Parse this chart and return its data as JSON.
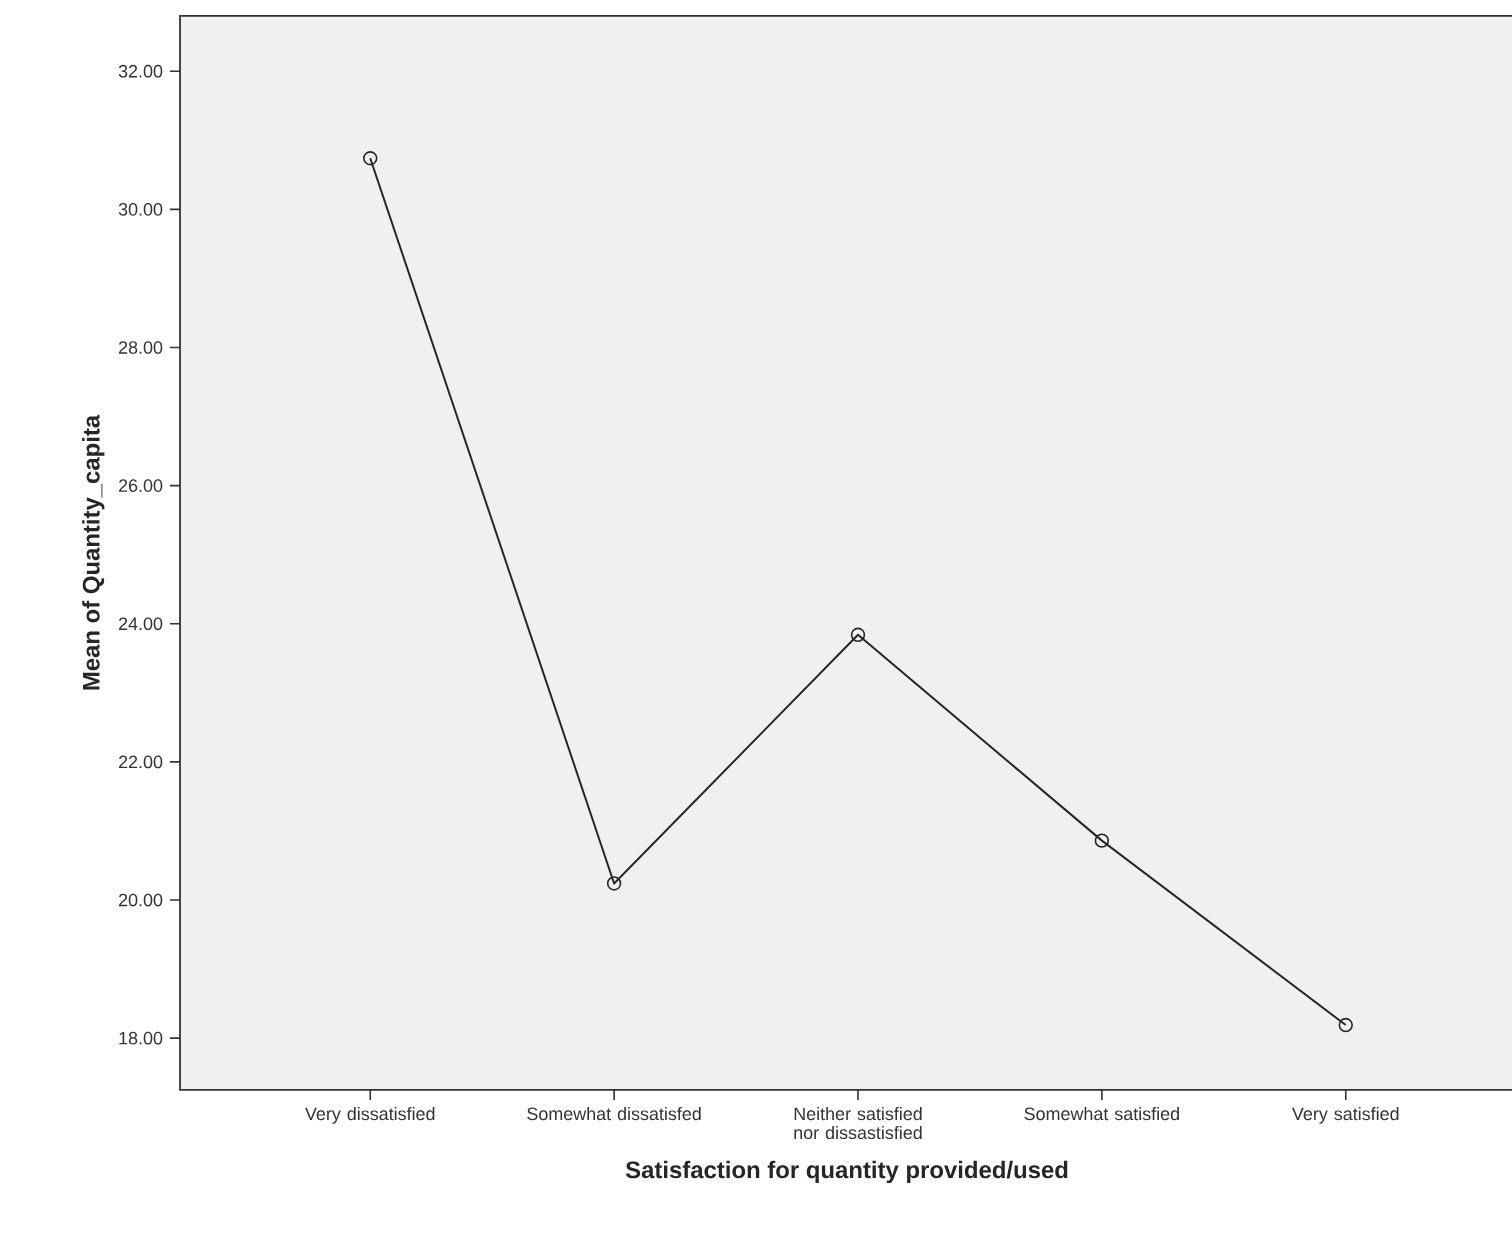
{
  "chart_data": {
    "type": "line",
    "xlabel": "Satisfaction for quantity provided/used",
    "ylabel": "Mean of Quantity_capita",
    "categories": [
      "Very dissatisfied",
      "Somewhat dissatisfed",
      "Neither satisfied nor dissastisfied",
      "Somewhat satisfied",
      "Very satisfied"
    ],
    "values": [
      30.74,
      20.24,
      23.84,
      20.86,
      18.19
    ],
    "color": "#262626",
    "marker": "circle",
    "ylim": [
      17.25,
      32.8
    ],
    "yticks": [
      {
        "value": 18,
        "label": "18.00"
      },
      {
        "value": 20,
        "label": "20.00"
      },
      {
        "value": 22,
        "label": "22.00"
      },
      {
        "value": 24,
        "label": "24.00"
      },
      {
        "value": 26,
        "label": "26.00"
      },
      {
        "value": 28,
        "label": "28.00"
      },
      {
        "value": 30,
        "label": "30.00"
      },
      {
        "value": 32,
        "label": "32.00"
      }
    ]
  }
}
